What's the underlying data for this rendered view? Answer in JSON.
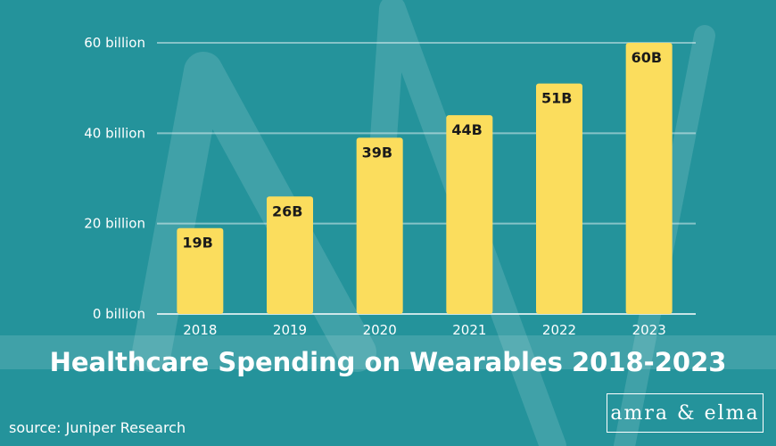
{
  "colors": {
    "background": "#24939b",
    "bar": "#fbdd5d",
    "axis_text": "#ffffff",
    "bar_label": "#1a1a1a"
  },
  "chart_data": {
    "type": "bar",
    "title": "Healthcare Spending on Wearables 2018-2023",
    "categories": [
      "2018",
      "2019",
      "2020",
      "2021",
      "2022",
      "2023"
    ],
    "values": [
      19,
      26,
      39,
      44,
      51,
      60
    ],
    "data_labels": [
      "19B",
      "26B",
      "39B",
      "44B",
      "51B",
      "60B"
    ],
    "yticks": [
      0,
      20,
      40,
      60
    ],
    "ytick_labels": [
      "0 billion",
      "20 billion",
      "40 billion",
      "60 billion"
    ],
    "ylim": [
      0,
      60
    ],
    "grid": true
  },
  "source": "source: Juniper Research",
  "brand": "amra & elma"
}
